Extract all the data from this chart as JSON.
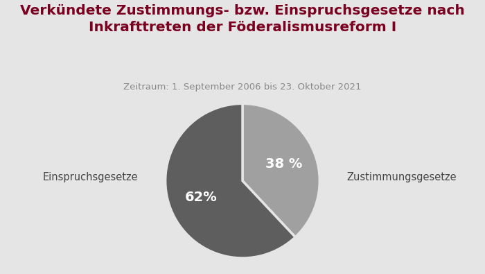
{
  "title_line1": "Verkündete Zustimmungs- bzw. Einspruchsgesetze nach",
  "title_line2": "Inkrafttreten der Föderalismusreform I",
  "subtitle": "Zeitraum: 1. September 2006 bis 23. Oktober 2021",
  "slices": [
    38,
    62
  ],
  "slice_order": [
    "Zustimmungsgesetze",
    "Einspruchsgesetze"
  ],
  "pct_labels": [
    "38 %",
    "62%"
  ],
  "colors": [
    "#a0a0a0",
    "#5e5e5e"
  ],
  "background_color": "#e5e5e5",
  "title_color": "#7a0020",
  "subtitle_color": "#888888",
  "text_color_white": "#ffffff",
  "label_color": "#444444",
  "startangle": 90,
  "title_fontsize": 14.5,
  "subtitle_fontsize": 9.5,
  "pct_fontsize": 14,
  "label_fontsize": 10.5,
  "label_right": "Zustimmungsgesetze",
  "label_left": "Einspruchsgesetze"
}
